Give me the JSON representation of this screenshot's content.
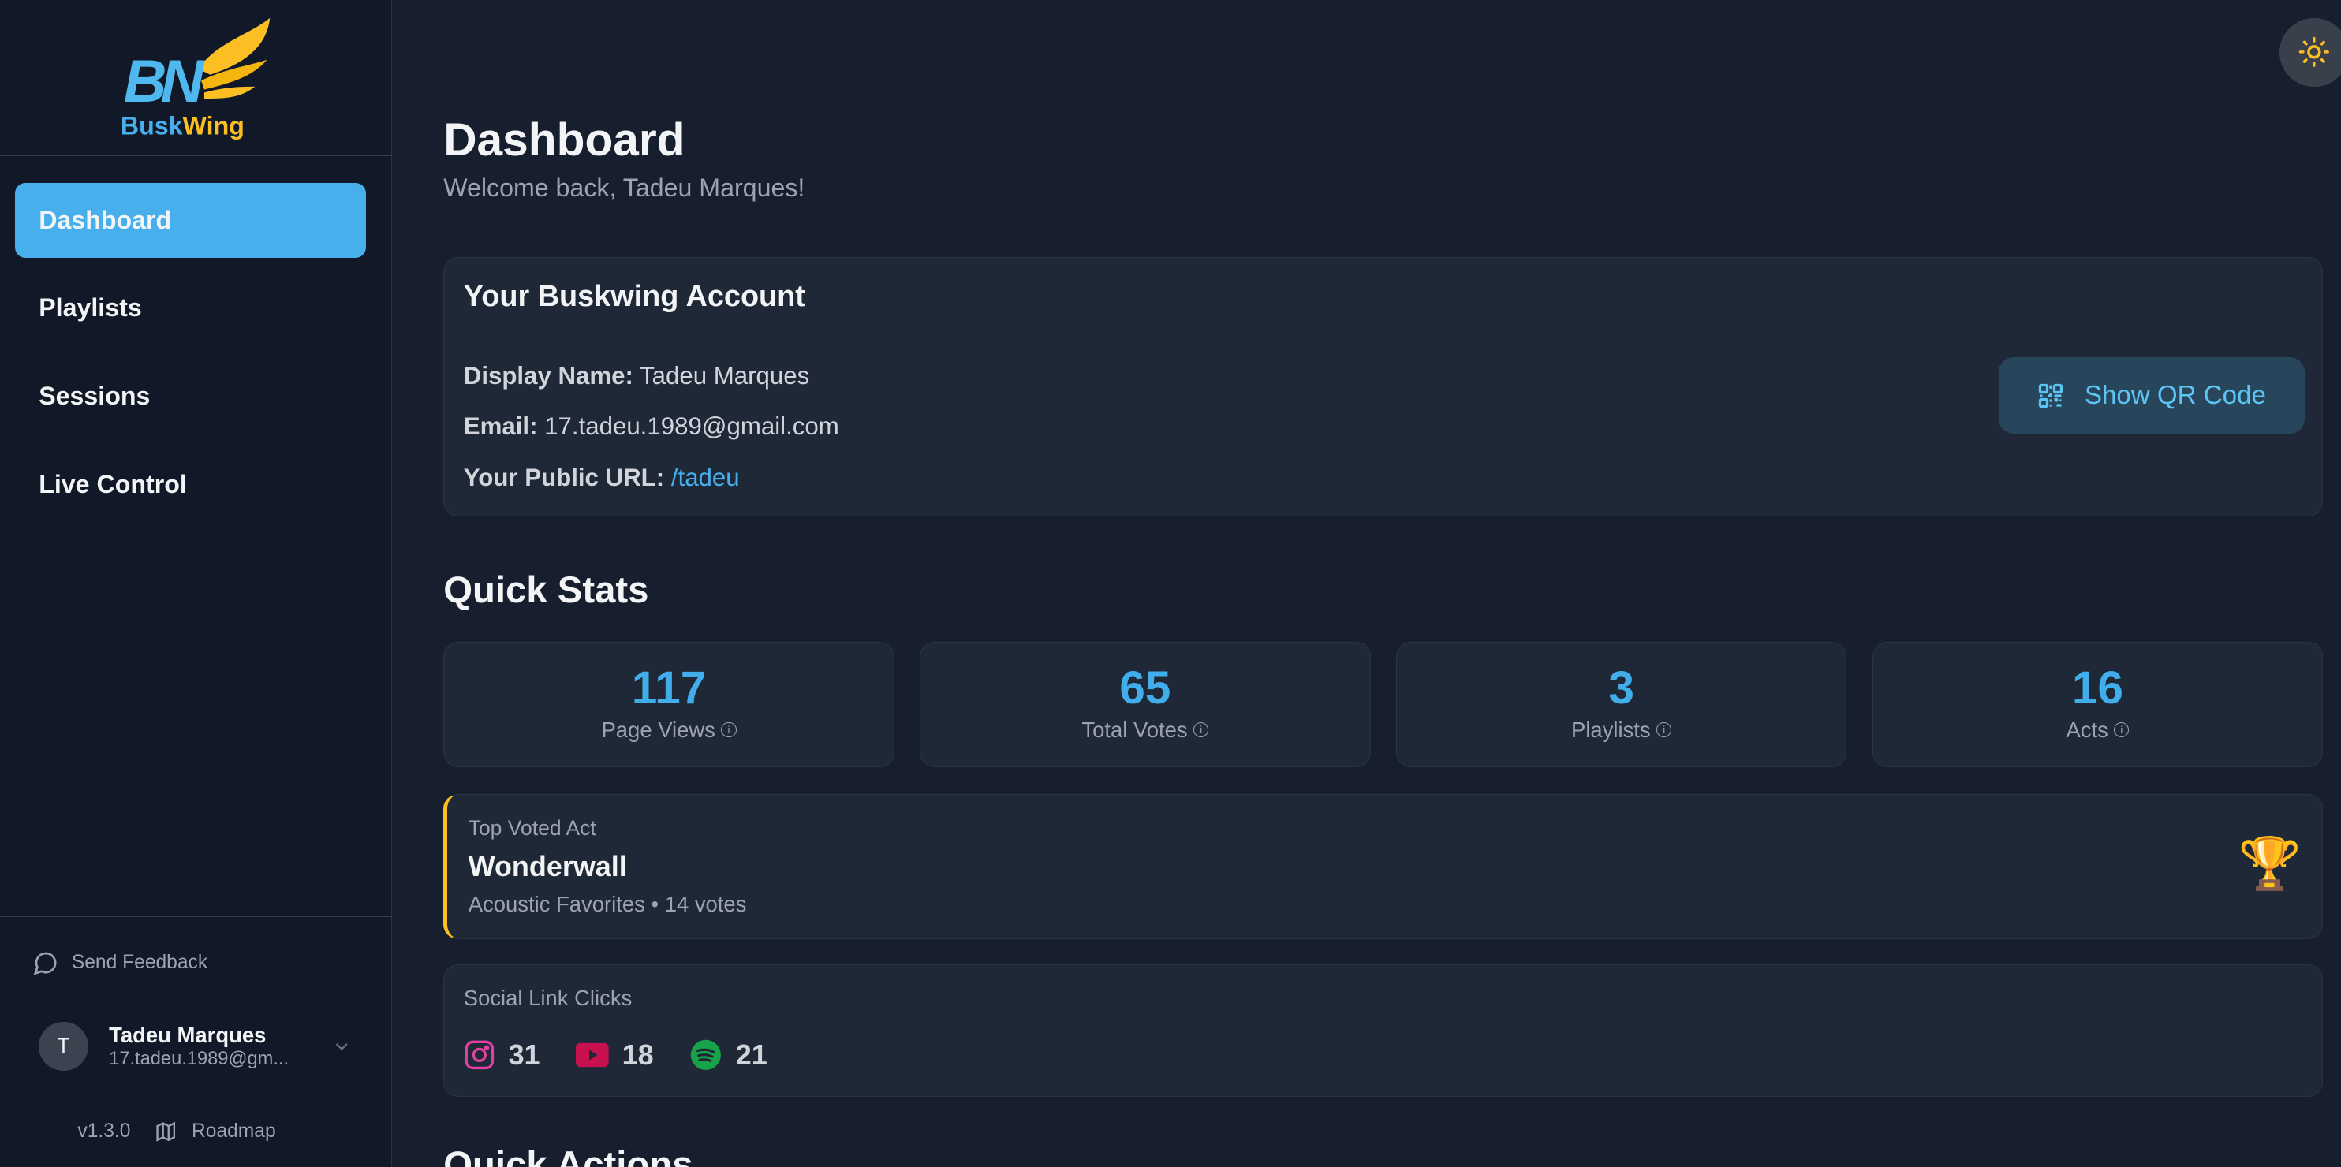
{
  "brand": {
    "name_part1": "Busk",
    "name_part2": "Wing",
    "monogram": "BW",
    "colors": {
      "blue": "#47b0ec",
      "gold": "#fbbf24"
    }
  },
  "sidebar": {
    "items": [
      {
        "label": "Dashboard",
        "active": true
      },
      {
        "label": "Playlists"
      },
      {
        "label": "Sessions"
      },
      {
        "label": "Live Control"
      }
    ],
    "feedback": "Send Feedback",
    "user": {
      "initial": "T",
      "name": "Tadeu Marques",
      "email": "17.tadeu.1989@gm..."
    },
    "version": "v1.3.0",
    "roadmap": "Roadmap"
  },
  "header": {
    "title": "Dashboard",
    "subtitle": "Welcome back, Tadeu Marques!",
    "theme_icon": "sun-icon"
  },
  "account": {
    "title": "Your Buskwing Account",
    "display_name_label": "Display Name:",
    "display_name": "Tadeu Marques",
    "email_label": "Email:",
    "email": "17.tadeu.1989@gmail.com",
    "url_label": "Your Public URL:",
    "url": "/tadeu",
    "qr_button": "Show QR Code"
  },
  "quick_stats": {
    "title": "Quick Stats",
    "items": [
      {
        "value": "117",
        "label": "Page Views"
      },
      {
        "value": "65",
        "label": "Total Votes"
      },
      {
        "value": "3",
        "label": "Playlists"
      },
      {
        "value": "16",
        "label": "Acts"
      }
    ]
  },
  "top_voted": {
    "kicker": "Top Voted Act",
    "title": "Wonderwall",
    "meta": "Acoustic Favorites • 14 votes",
    "icon": "🏆"
  },
  "social": {
    "title": "Social Link Clicks",
    "instagram": "31",
    "youtube": "18",
    "spotify": "21"
  },
  "quick_actions": {
    "title": "Quick Actions"
  }
}
